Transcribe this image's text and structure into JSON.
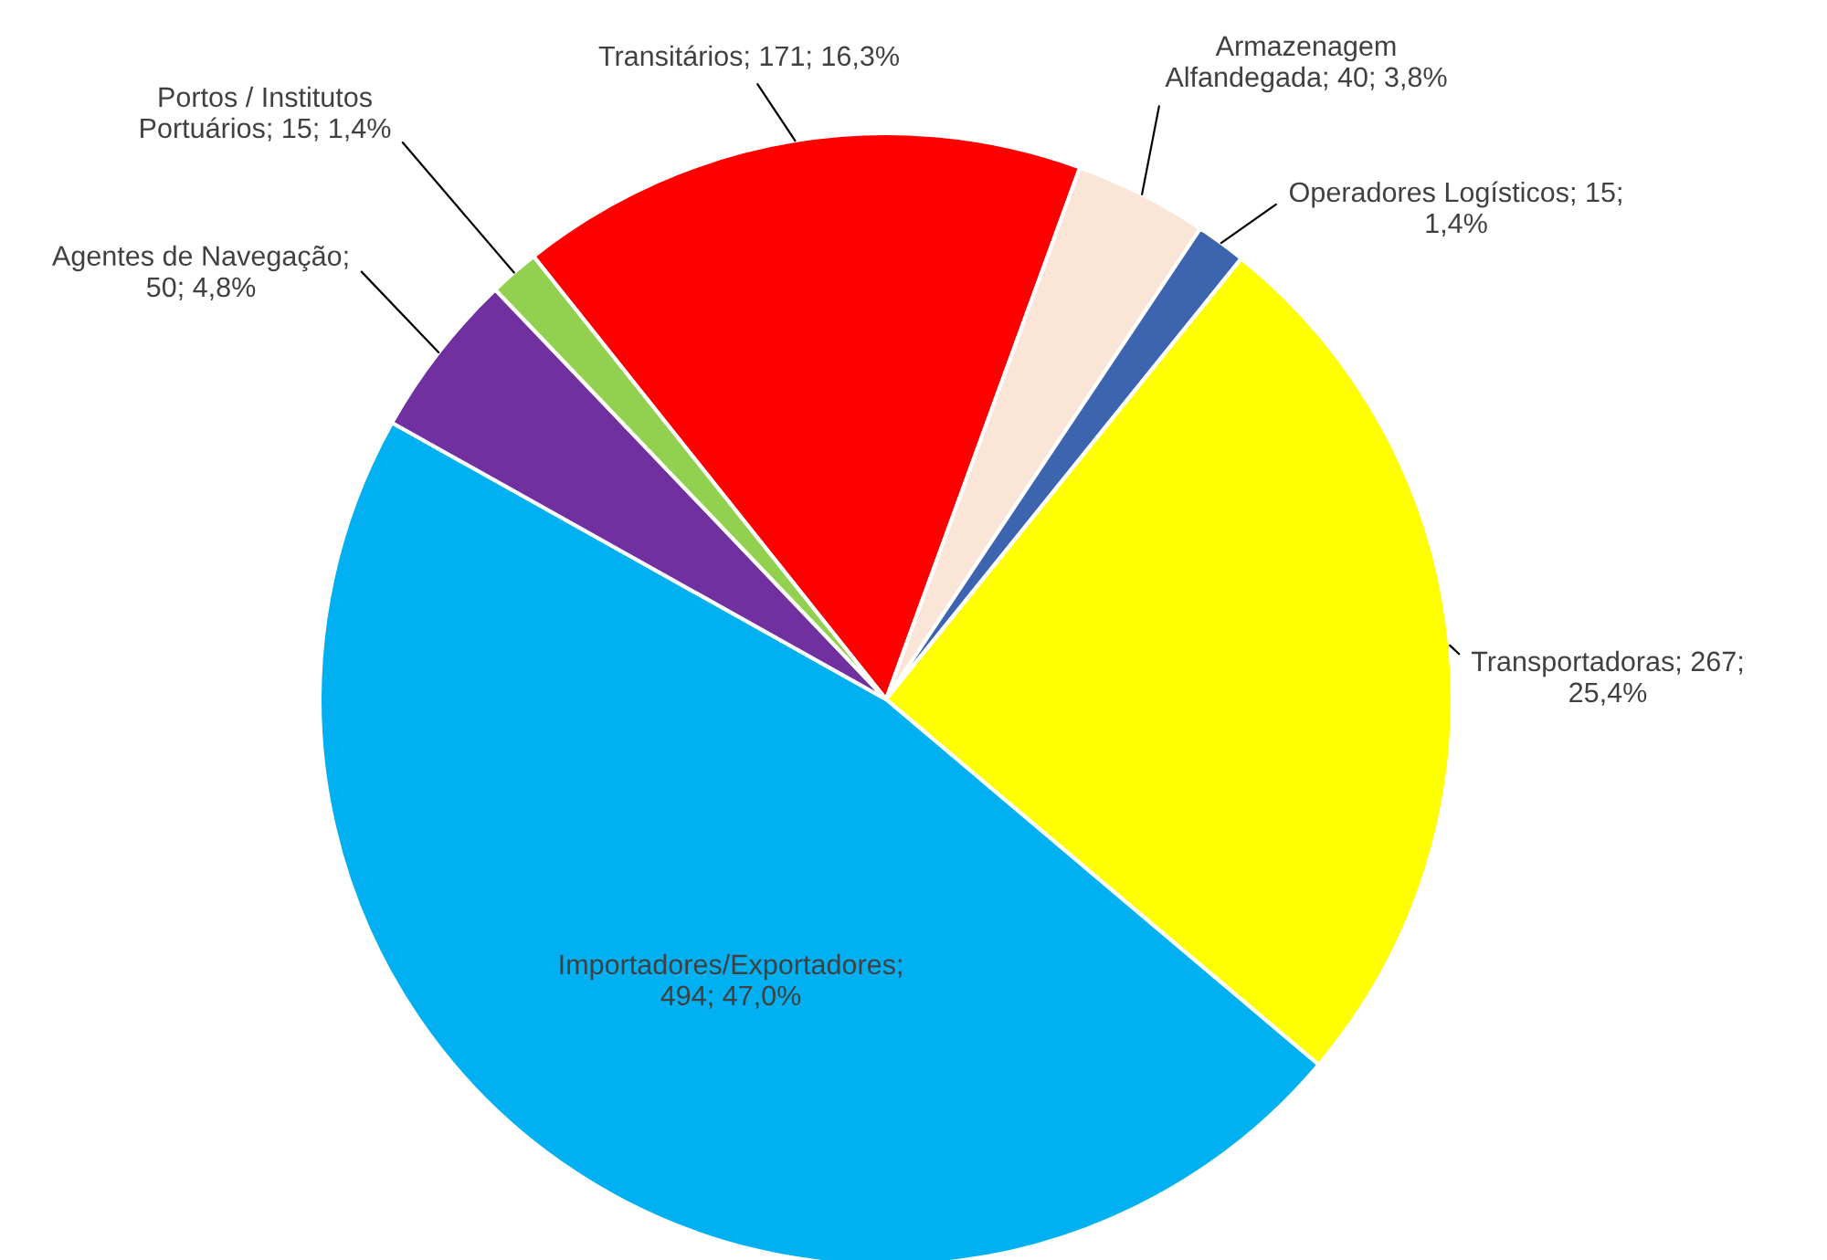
{
  "chart_data": {
    "type": "pie",
    "categories": [
      "Transitários",
      "Armazenagem Alfandegada",
      "Operadores Logísticos",
      "Transportadoras",
      "Importadores/Exportadores",
      "Agentes de Navegação",
      "Portos / Institutos Portuários"
    ],
    "values": [
      171,
      40,
      15,
      267,
      494,
      50,
      15
    ],
    "value_labels": [
      "; 171; 16,3%",
      "; 40; 3,8%",
      "; 15; 1,4%",
      "; 267; 25,4%",
      "; 494; 47,0%",
      "; 50; 4,8%",
      "; 15; 1,4%"
    ],
    "colors": [
      "#ff0000",
      "#fbe5d6",
      "#3c64af",
      "#ffff00",
      "#00b0f0",
      "#7030a0",
      "#92d050"
    ]
  }
}
